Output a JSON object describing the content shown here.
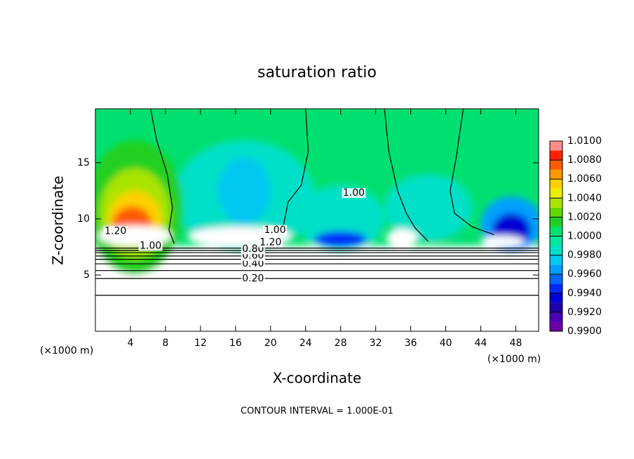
{
  "chart_data": {
    "type": "contour",
    "title": "saturation ratio",
    "x_label": "X-coordinate",
    "y_label": "Z-coordinate",
    "x_unit": "(×1000 m)",
    "y_unit": "(×1000 m)",
    "footer": "CONTOUR INTERVAL = 1.000E-01",
    "xlim": [
      0,
      50.6
    ],
    "ylim": [
      0,
      19.8
    ],
    "xticks": [
      4,
      8,
      12,
      16,
      20,
      24,
      28,
      32,
      36,
      40,
      44,
      48
    ],
    "yticks": [
      5,
      10,
      15
    ],
    "clim": [
      0.99,
      1.01
    ],
    "colors": [
      "#6a00a8",
      "#4b00b4",
      "#1a00a8",
      "#0000d4",
      "#0028f8",
      "#0068ff",
      "#00a0ff",
      "#00c8f0",
      "#00e0c8",
      "#00e8a0",
      "#00e070",
      "#20d020",
      "#60d800",
      "#a8e400",
      "#e8f000",
      "#ffd000",
      "#ff9800",
      "#ff5a00",
      "#ff2000",
      "#ff8c8c"
    ],
    "cticks": [
      {
        "value": 0.99,
        "label": "0.9900"
      },
      {
        "value": 0.992,
        "label": "0.9920"
      },
      {
        "value": 0.994,
        "label": "0.9940"
      },
      {
        "value": 0.996,
        "label": "0.9960"
      },
      {
        "value": 0.998,
        "label": "0.9980"
      },
      {
        "value": 1.0,
        "label": "1.0000"
      },
      {
        "value": 1.002,
        "label": "1.0020"
      },
      {
        "value": 1.004,
        "label": "1.0040"
      },
      {
        "value": 1.006,
        "label": "1.0060"
      },
      {
        "value": 1.008,
        "label": "1.0080"
      },
      {
        "value": 1.01,
        "label": "1.0100"
      }
    ],
    "background": 1.0004,
    "field": [
      {
        "value": 0.9986,
        "x": 17,
        "z": 12,
        "rx": 8,
        "rz": 5
      },
      {
        "value": 0.9976,
        "x": 17,
        "z": 12.5,
        "rx": 3,
        "rz": 3
      },
      {
        "value": 0.9984,
        "x": 28,
        "z": 10,
        "rx": 5,
        "rz": 3
      },
      {
        "value": 0.9984,
        "x": 38,
        "z": 11,
        "rx": 5,
        "rz": 3
      },
      {
        "value": 1.0018,
        "x": 4.5,
        "z": 11,
        "rx": 5.5,
        "rz": 6
      },
      {
        "value": 1.0035,
        "x": 4.5,
        "z": 10.5,
        "rx": 4,
        "rz": 4
      },
      {
        "value": 1.0055,
        "x": 4.5,
        "z": 10,
        "rx": 3,
        "rz": 2.5
      },
      {
        "value": 1.0075,
        "x": 4.2,
        "z": 9.6,
        "rx": 2.2,
        "rz": 1.5
      },
      {
        "value": 0.9962,
        "x": 47.5,
        "z": 9.5,
        "rx": 3.5,
        "rz": 2.5
      },
      {
        "value": 0.993,
        "x": 47.5,
        "z": 9,
        "rx": 2.2,
        "rz": 1.5
      },
      {
        "value": 0.994,
        "x": 28,
        "z": 8.2,
        "rx": 3,
        "rz": 0.7
      },
      {
        "value": 1.2,
        "x": 4.5,
        "z": 8.5,
        "rx": 4.2,
        "rz": 0.9
      },
      {
        "value": 1.2,
        "x": 16.5,
        "z": 8.4,
        "rx": 6,
        "rz": 0.9
      },
      {
        "value": 1.2,
        "x": 35,
        "z": 8.3,
        "rx": 1.8,
        "rz": 0.8
      },
      {
        "value": 1.2,
        "x": 46.5,
        "z": 8,
        "rx": 2.5,
        "rz": 0.5
      }
    ],
    "contours": [
      {
        "level": 0.1,
        "x": [
          0,
          50.6
        ],
        "z": [
          3.2,
          3.2
        ]
      },
      {
        "level": 0.2,
        "x": [
          0,
          50.6
        ],
        "z": [
          4.7,
          4.7
        ]
      },
      {
        "level": 0.3,
        "x": [
          0,
          50.6
        ],
        "z": [
          5.4,
          5.4
        ]
      },
      {
        "level": 0.4,
        "x": [
          0,
          50.6
        ],
        "z": [
          6.0,
          6.0
        ]
      },
      {
        "level": 0.5,
        "x": [
          0,
          50.6
        ],
        "z": [
          6.4,
          6.4
        ]
      },
      {
        "level": 0.6,
        "x": [
          0,
          50.6
        ],
        "z": [
          6.7,
          6.7
        ]
      },
      {
        "level": 0.7,
        "x": [
          0,
          50.6
        ],
        "z": [
          7.0,
          7.0
        ]
      },
      {
        "level": 0.8,
        "x": [
          0,
          50.6
        ],
        "z": [
          7.2,
          7.2
        ]
      },
      {
        "level": 0.9,
        "x": [
          0,
          50.6
        ],
        "z": [
          7.4,
          7.4
        ]
      },
      {
        "level": 1.0,
        "x": [
          24,
          24.3,
          23.5,
          22,
          21.5
        ],
        "z": [
          19.8,
          16,
          13,
          11.5,
          9.5
        ]
      },
      {
        "level": 1.0,
        "x": [
          33,
          33.5,
          34.5,
          35.5,
          36.5,
          38
        ],
        "z": [
          19.8,
          16,
          12.5,
          10.5,
          9.2,
          8
        ]
      },
      {
        "level": 1.0,
        "x": [
          42,
          41.2,
          40.5,
          41,
          43,
          45.5
        ],
        "z": [
          19.8,
          15.5,
          12.5,
          10.5,
          9.3,
          8.6
        ]
      },
      {
        "level": 1.0,
        "x": [
          6.3,
          7,
          8.2,
          8.8,
          8.4,
          9
        ],
        "z": [
          19.8,
          17,
          14,
          11,
          9,
          7.8
        ]
      }
    ],
    "labels": [
      {
        "value": 0.2,
        "label": "0.20",
        "x": 18,
        "z": 4.7
      },
      {
        "value": 0.4,
        "label": "0.40",
        "x": 18,
        "z": 6.0
      },
      {
        "value": 0.6,
        "label": "0.60",
        "x": 18,
        "z": 6.7
      },
      {
        "value": 0.8,
        "label": "0.80",
        "x": 18,
        "z": 7.3
      },
      {
        "value": 1.0,
        "label": "1.00",
        "x": 6.3,
        "z": 7.6
      },
      {
        "value": 1.2,
        "label": "1.20",
        "x": 2.3,
        "z": 8.9
      },
      {
        "value": 1.2,
        "label": "1.20",
        "x": 20,
        "z": 7.9
      },
      {
        "value": 1.0,
        "label": "1.00",
        "x": 20.5,
        "z": 9.0
      },
      {
        "value": 1.0,
        "label": "1.00",
        "x": 29.5,
        "z": 12.3
      }
    ]
  }
}
